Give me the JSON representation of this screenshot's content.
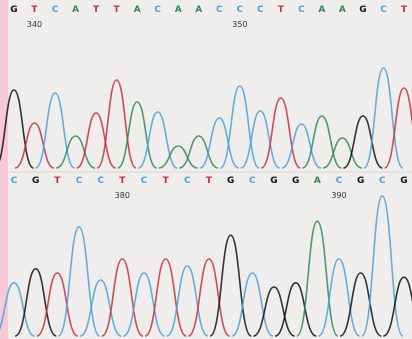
{
  "colors": {
    "page_bg": "#f7c9d6",
    "panel_bg": "#efeeec",
    "G": "#111111",
    "A": "#2e8b57",
    "T": "#cc2b3a",
    "C": "#4aa0e0"
  },
  "panels": [
    {
      "sequence": [
        "G",
        "T",
        "C",
        "A",
        "T",
        "T",
        "A",
        "C",
        "A",
        "A",
        "C",
        "C",
        "C",
        "T",
        "C",
        "A",
        "A",
        "G",
        "C",
        "T"
      ],
      "positions": [
        {
          "label": "340",
          "after_base": 1
        },
        {
          "label": "350",
          "after_base": 11
        }
      ],
      "peaks_relative": [
        {
          "base": "G",
          "height": 0.78
        },
        {
          "base": "T",
          "height": 0.45
        },
        {
          "base": "C",
          "height": 0.75
        },
        {
          "base": "A",
          "height": 0.32
        },
        {
          "base": "T",
          "height": 0.55
        },
        {
          "base": "T",
          "height": 0.88
        },
        {
          "base": "A",
          "height": 0.66
        },
        {
          "base": "C",
          "height": 0.56
        },
        {
          "base": "A",
          "height": 0.22
        },
        {
          "base": "A",
          "height": 0.32
        },
        {
          "base": "C",
          "height": 0.5
        },
        {
          "base": "C",
          "height": 0.82
        },
        {
          "base": "C",
          "height": 0.57
        },
        {
          "base": "T",
          "height": 0.7
        },
        {
          "base": "C",
          "height": 0.44
        },
        {
          "base": "A",
          "height": 0.52
        },
        {
          "base": "A",
          "height": 0.3
        },
        {
          "base": "G",
          "height": 0.52
        },
        {
          "base": "C",
          "height": 1.0
        },
        {
          "base": "T",
          "height": 0.8
        }
      ]
    },
    {
      "sequence": [
        "C",
        "G",
        "T",
        "C",
        "C",
        "T",
        "C",
        "T",
        "C",
        "T",
        "G",
        "C",
        "G",
        "G",
        "A",
        "C",
        "G",
        "C",
        "G"
      ],
      "positions": [
        {
          "label": "380",
          "after_base": 5
        },
        {
          "label": "390",
          "after_base": 15
        }
      ],
      "peaks_relative": [
        {
          "base": "C",
          "height": 0.38
        },
        {
          "base": "G",
          "height": 0.48
        },
        {
          "base": "T",
          "height": 0.45
        },
        {
          "base": "C",
          "height": 0.78
        },
        {
          "base": "C",
          "height": 0.4
        },
        {
          "base": "T",
          "height": 0.55
        },
        {
          "base": "C",
          "height": 0.45
        },
        {
          "base": "T",
          "height": 0.55
        },
        {
          "base": "C",
          "height": 0.5
        },
        {
          "base": "T",
          "height": 0.55
        },
        {
          "base": "G",
          "height": 0.72
        },
        {
          "base": "C",
          "height": 0.45
        },
        {
          "base": "G",
          "height": 0.35
        },
        {
          "base": "G",
          "height": 0.38
        },
        {
          "base": "A",
          "height": 0.82
        },
        {
          "base": "C",
          "height": 0.55
        },
        {
          "base": "G",
          "height": 0.45
        },
        {
          "base": "C",
          "height": 1.0
        },
        {
          "base": "G",
          "height": 0.42
        }
      ]
    }
  ]
}
